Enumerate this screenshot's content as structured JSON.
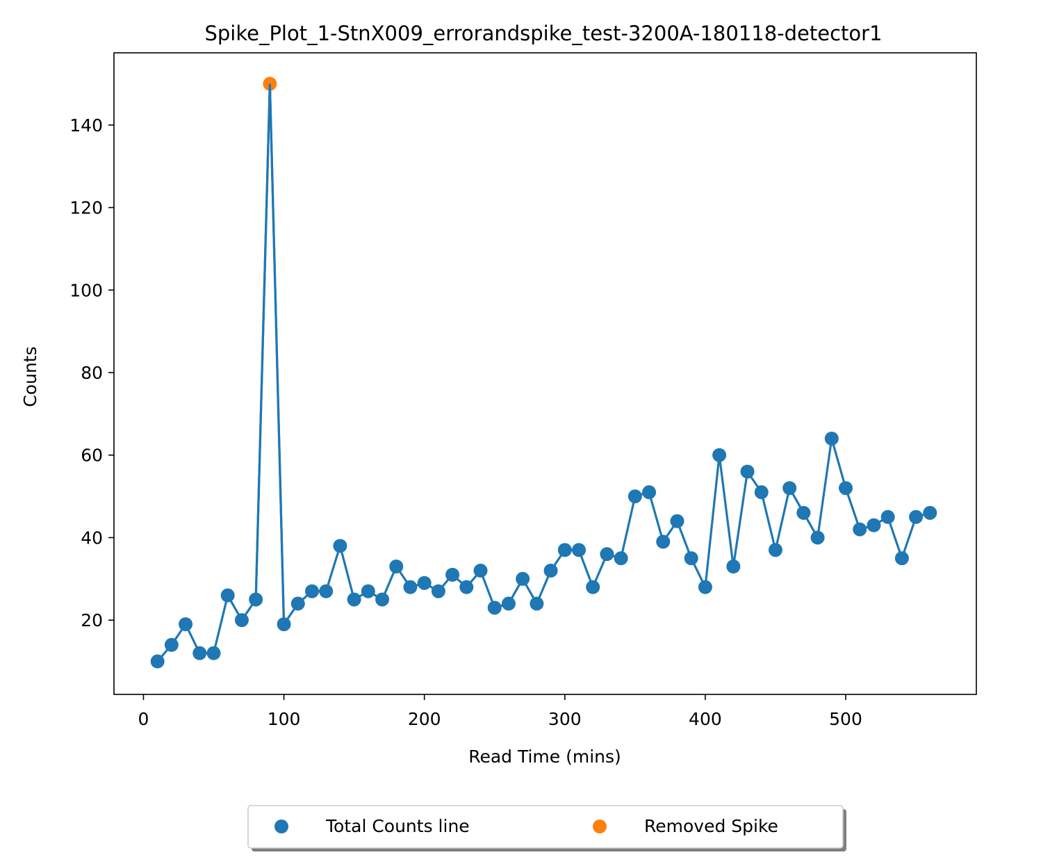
{
  "chart_data": {
    "type": "line",
    "title": "Spike_Plot_1-StnX009_errorandspike_test-3200A-180118-detector1",
    "xlabel": "Read Time (mins)",
    "ylabel": "Counts",
    "xlim": [
      -21,
      593
    ],
    "ylim": [
      2,
      157.5
    ],
    "xticks": [
      0,
      100,
      200,
      300,
      400,
      500
    ],
    "yticks": [
      20,
      40,
      60,
      80,
      100,
      120,
      140
    ],
    "grid": false,
    "legend_placement": "bottom-center, below axes",
    "series": [
      {
        "name": "Total Counts line",
        "color": "#1f77b4",
        "style": "line-with-markers",
        "x": [
          10,
          20,
          30,
          40,
          50,
          60,
          70,
          80,
          90,
          100,
          110,
          120,
          130,
          140,
          150,
          160,
          170,
          180,
          190,
          200,
          210,
          220,
          230,
          240,
          250,
          260,
          270,
          280,
          290,
          300,
          310,
          320,
          330,
          340,
          350,
          360,
          370,
          380,
          390,
          400,
          410,
          420,
          430,
          440,
          450,
          460,
          470,
          480,
          490,
          500,
          510,
          520,
          530,
          540,
          550,
          560
        ],
        "y": [
          10,
          14,
          19,
          12,
          12,
          26,
          20,
          25,
          150,
          19,
          24,
          27,
          27,
          38,
          25,
          27,
          25,
          33,
          28,
          29,
          27,
          31,
          28,
          32,
          23,
          24,
          30,
          24,
          32,
          37,
          37,
          28,
          36,
          35,
          50,
          51,
          39,
          44,
          35,
          28,
          60,
          33,
          56,
          51,
          37,
          52,
          46,
          40,
          64,
          52,
          42,
          43,
          45,
          35,
          45,
          46
        ],
        "marker_skip_x": [
          90
        ]
      },
      {
        "name": "Removed Spike",
        "color": "#ff7f0e",
        "style": "scatter",
        "x": [
          90
        ],
        "y": [
          150
        ]
      }
    ]
  }
}
